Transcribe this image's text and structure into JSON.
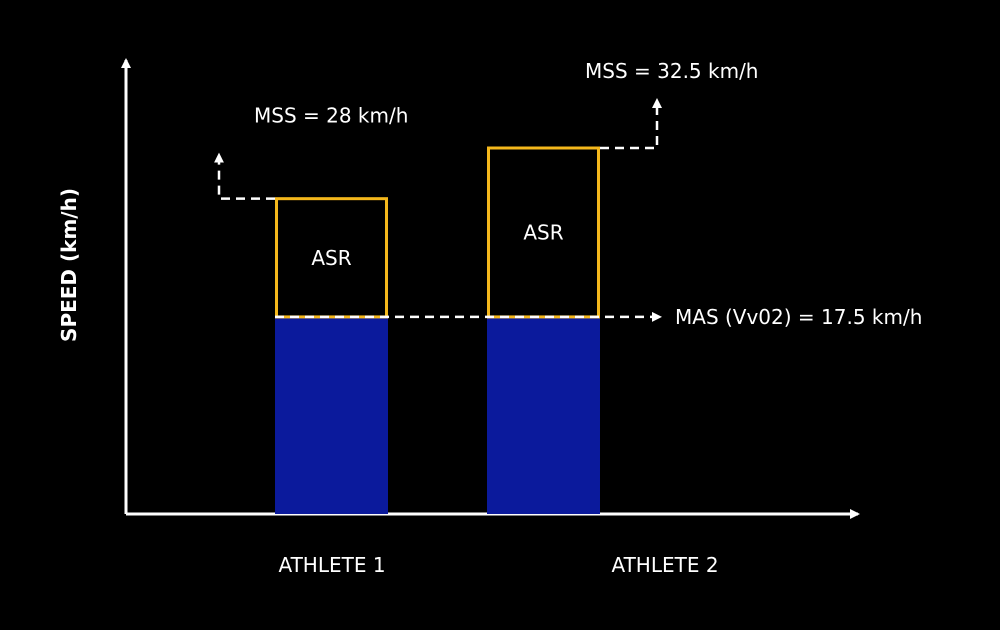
{
  "chart_data": {
    "type": "bar",
    "ylabel": "SPEED (km/h)",
    "categories": [
      "ATHLETE 1",
      "ATHLETE 2"
    ],
    "series": [
      {
        "name": "",
        "values": [
          17.5,
          17.5
        ]
      },
      {
        "name": "ASR",
        "values": [
          10.5,
          15
        ]
      }
    ],
    "mas": {
      "label": "MAS (Vv02) = 17.5 km/h",
      "value": 17.5
    },
    "mss": [
      {
        "label": "MSS = 28 km/h",
        "value": 28
      },
      {
        "label": "MSS = 32.5 km/h",
        "value": 32.5
      }
    ],
    "segment_label": "ASR",
    "ylim": [
      0,
      42
    ],
    "colors": {
      "base": "#0b1a9c",
      "asr_outline": "#f5b81c",
      "axis": "#ffffff",
      "background": "#000000"
    }
  }
}
